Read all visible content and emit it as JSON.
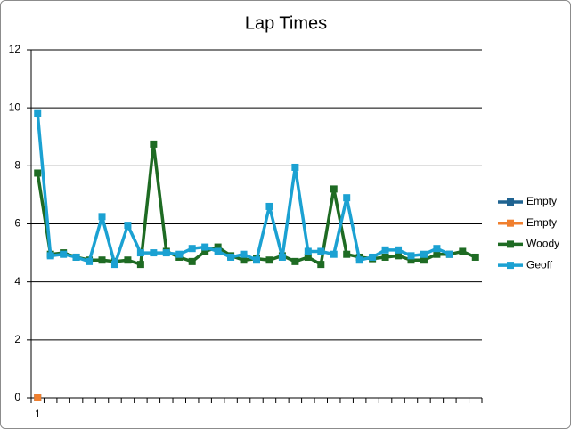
{
  "chart_data": {
    "type": "line",
    "title": "Lap Times",
    "categories": [
      "1",
      null,
      null,
      null,
      null,
      null,
      null,
      null,
      null,
      null,
      null,
      null,
      null,
      null,
      null,
      null,
      null,
      null,
      null,
      null,
      null,
      null,
      null,
      null,
      null,
      null,
      null,
      null,
      null,
      null,
      null,
      null,
      null,
      null,
      null
    ],
    "series": [
      {
        "name": "Empty",
        "color": "#1f6391",
        "values": [
          0,
          null,
          null,
          null,
          null,
          null,
          null,
          null,
          null,
          null,
          null,
          null,
          null,
          null,
          null,
          null,
          null,
          null,
          null,
          null,
          null,
          null,
          null,
          null,
          null,
          null,
          null,
          null,
          null,
          null,
          null,
          null,
          null,
          null,
          null
        ]
      },
      {
        "name": "Empty",
        "color": "#f07f2e",
        "values": [
          0,
          null,
          null,
          null,
          null,
          null,
          null,
          null,
          null,
          null,
          null,
          null,
          null,
          null,
          null,
          null,
          null,
          null,
          null,
          null,
          null,
          null,
          null,
          null,
          null,
          null,
          null,
          null,
          null,
          null,
          null,
          null,
          null,
          null,
          null
        ]
      },
      {
        "name": "Woody",
        "color": "#1e6b23",
        "values": [
          7.75,
          4.95,
          5.0,
          4.85,
          4.75,
          4.75,
          4.7,
          4.75,
          4.6,
          8.75,
          5.05,
          4.85,
          4.7,
          5.05,
          5.2,
          4.9,
          4.75,
          4.8,
          4.75,
          4.9,
          4.7,
          4.85,
          4.6,
          7.2,
          4.95,
          4.85,
          4.8,
          4.85,
          4.9,
          4.75,
          4.75,
          4.95,
          4.95,
          5.05,
          4.85
        ]
      },
      {
        "name": "Geoff",
        "color": "#1ba1d2",
        "values": [
          9.8,
          4.9,
          4.95,
          4.85,
          4.7,
          6.25,
          4.6,
          5.95,
          5.0,
          5.0,
          5.0,
          4.95,
          5.15,
          5.2,
          5.05,
          4.85,
          4.95,
          4.75,
          6.6,
          4.85,
          7.95,
          5.05,
          5.05,
          4.95,
          6.9,
          4.75,
          4.85,
          5.1,
          5.1,
          4.9,
          4.95,
          5.15,
          4.95,
          null,
          null
        ]
      }
    ],
    "ylim": [
      0,
      12
    ],
    "yticks": [
      0,
      2,
      4,
      6,
      8,
      10,
      12
    ],
    "grid": true,
    "legend": "right"
  }
}
